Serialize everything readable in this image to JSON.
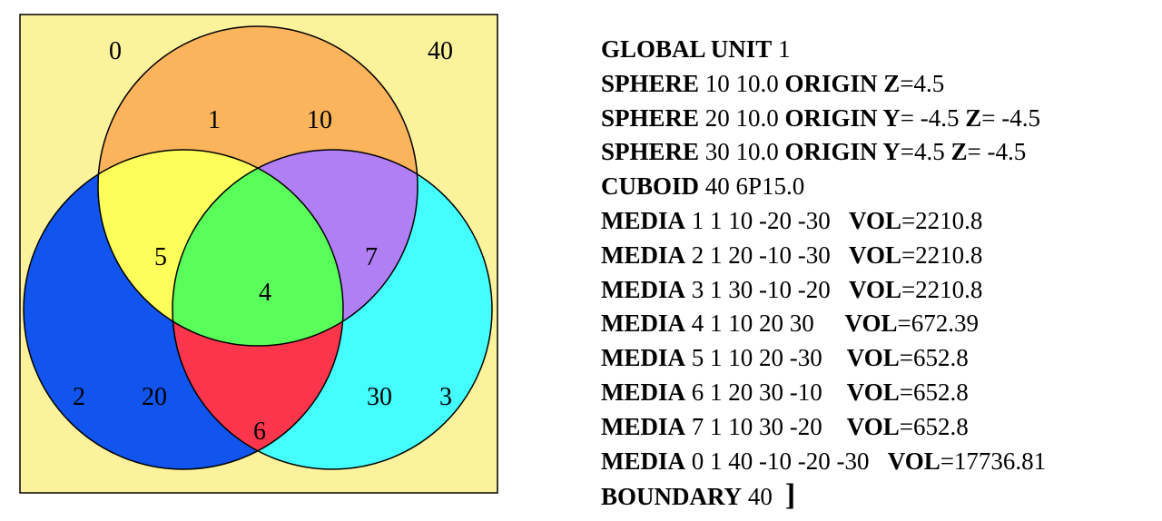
{
  "diagram": {
    "colors": {
      "background": "#fbf29b",
      "top_circle": "#fbb45c",
      "left_circle": "#1155ee",
      "right_circle": "#44fefe",
      "region_top_left": "#fefe5a",
      "region_top_right": "#b07ef5",
      "region_center": "#5afe5a",
      "region_bottom": "#fb364c"
    },
    "labels": {
      "cuboid_left": "0",
      "cuboid_right": "40",
      "top_a": "1",
      "top_b": "10",
      "left_a": "2",
      "left_b": "20",
      "right_a": "30",
      "right_b": "3",
      "region_5": "5",
      "region_7": "7",
      "region_4": "4",
      "region_6": "6"
    }
  },
  "code": {
    "lines": [
      {
        "kw": "GLOBAL UNIT",
        "rest": " 1"
      },
      {
        "kw": "SPHERE",
        "rest": " 10 10.0 ",
        "kw2": "ORIGIN Z",
        "rest2": "=4.5"
      },
      {
        "kw": "SPHERE",
        "rest": " 20 10.0 ",
        "kw2": "ORIGIN Y",
        "rest2": "= -4.5 ",
        "kw3": "Z",
        "rest3": "= -4.5"
      },
      {
        "kw": "SPHERE",
        "rest": " 30 10.0 ",
        "kw2": "ORIGIN Y",
        "rest2": "=4.5 ",
        "kw3": "Z",
        "rest3": "= -4.5"
      },
      {
        "kw": "CUBOID",
        "rest": " 40 6P15.0"
      },
      {
        "kw": "MEDIA",
        "rest": " 1 1 10 -20 -30   ",
        "kw2": "VOL",
        "rest2": "=2210.8"
      },
      {
        "kw": "MEDIA",
        "rest": " 2 1 20 -10 -30   ",
        "kw2": "VOL",
        "rest2": "=2210.8"
      },
      {
        "kw": "MEDIA",
        "rest": " 3 1 30 -10 -20   ",
        "kw2": "VOL",
        "rest2": "=2210.8"
      },
      {
        "kw": "MEDIA",
        "rest": " 4 1 10 20 30     ",
        "kw2": "VOL",
        "rest2": "=672.39"
      },
      {
        "kw": "MEDIA",
        "rest": " 5 1 10 20 -30    ",
        "kw2": "VOL",
        "rest2": "=652.8"
      },
      {
        "kw": "MEDIA",
        "rest": " 6 1 20 30 -10    ",
        "kw2": "VOL",
        "rest2": "=652.8"
      },
      {
        "kw": "MEDIA",
        "rest": " 7 1 10 30 -20    ",
        "kw2": "VOL",
        "rest2": "=652.8"
      },
      {
        "kw": "MEDIA",
        "rest": " 0 1 40 -10 -20 -30   ",
        "kw2": "VOL",
        "rest2": "=17736.81"
      },
      {
        "kw": "BOUNDARY",
        "rest": " 40",
        "bracket": "]"
      }
    ]
  }
}
